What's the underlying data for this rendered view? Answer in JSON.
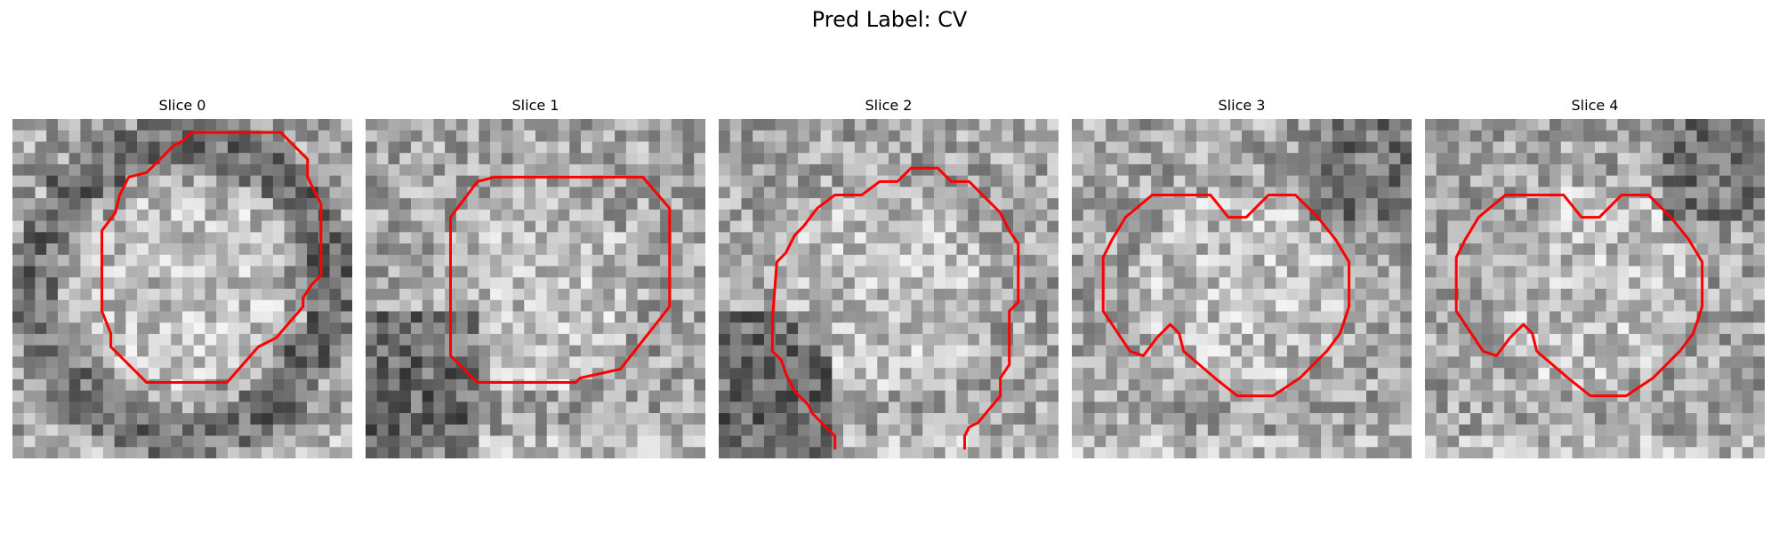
{
  "figure": {
    "title": "Pred Label: CV"
  },
  "panels": [
    {
      "title": "Slice 0",
      "seed": 11,
      "dark_band": "ring",
      "contour": [
        [
          46,
          3
        ],
        [
          60,
          3
        ],
        [
          66,
          9
        ],
        [
          66,
          13
        ],
        [
          69,
          19
        ],
        [
          69,
          35
        ],
        [
          67,
          37
        ],
        [
          65,
          40
        ],
        [
          65,
          42
        ],
        [
          59,
          49
        ],
        [
          55,
          51
        ],
        [
          48,
          59
        ],
        [
          30,
          59
        ],
        [
          22,
          51
        ],
        [
          22,
          48
        ],
        [
          20,
          43
        ],
        [
          20,
          25
        ],
        [
          23,
          21
        ],
        [
          24,
          17
        ],
        [
          26,
          13
        ],
        [
          30,
          12
        ],
        [
          36,
          6
        ],
        [
          38,
          5
        ],
        [
          40,
          3
        ]
      ]
    },
    {
      "title": "Slice 1",
      "seed": 23,
      "dark_band": "lower-left",
      "contour": [
        [
          29,
          13
        ],
        [
          62,
          13
        ],
        [
          68,
          20
        ],
        [
          68,
          42
        ],
        [
          57,
          56
        ],
        [
          48,
          58
        ],
        [
          47,
          59
        ],
        [
          25,
          59
        ],
        [
          19,
          53
        ],
        [
          19,
          22
        ],
        [
          25,
          14
        ]
      ]
    },
    {
      "title": "Slice 2",
      "seed": 37,
      "dark_band": "lower-left",
      "contour": [
        [
          26,
          74
        ],
        [
          26,
          71
        ],
        [
          21,
          66
        ],
        [
          20,
          64
        ],
        [
          17,
          61
        ],
        [
          15,
          57
        ],
        [
          14,
          54
        ],
        [
          12,
          52
        ],
        [
          12,
          45
        ],
        [
          13,
          32
        ],
        [
          15,
          30
        ],
        [
          17,
          26
        ],
        [
          19,
          24
        ],
        [
          22,
          20
        ],
        [
          26,
          17
        ],
        [
          32,
          17
        ],
        [
          36,
          14
        ],
        [
          40,
          14
        ],
        [
          43,
          11
        ],
        [
          49,
          11
        ],
        [
          52,
          14
        ],
        [
          56,
          14
        ],
        [
          63,
          21
        ],
        [
          65,
          25
        ],
        [
          67,
          28
        ],
        [
          67,
          41
        ],
        [
          65,
          43
        ],
        [
          65,
          55
        ],
        [
          63,
          58
        ],
        [
          63,
          62
        ],
        [
          58,
          68
        ],
        [
          56,
          69
        ],
        [
          55,
          71
        ],
        [
          55,
          74
        ]
      ]
    },
    {
      "title": "Slice 3",
      "seed": 41,
      "dark_band": "upper-right",
      "contour": [
        [
          31,
          17
        ],
        [
          35,
          22
        ],
        [
          39,
          22
        ],
        [
          44,
          17
        ],
        [
          50,
          17
        ],
        [
          55,
          22
        ],
        [
          59,
          27
        ],
        [
          62,
          32
        ],
        [
          62,
          42
        ],
        [
          60,
          48
        ],
        [
          57,
          52
        ],
        [
          51,
          58
        ],
        [
          45,
          62
        ],
        [
          37,
          62
        ],
        [
          32,
          58
        ],
        [
          25,
          52
        ],
        [
          24,
          48
        ],
        [
          22,
          46
        ],
        [
          19,
          49
        ],
        [
          16,
          53
        ],
        [
          13,
          52
        ],
        [
          9,
          46
        ],
        [
          7,
          43
        ],
        [
          7,
          31
        ],
        [
          9,
          27
        ],
        [
          12,
          22
        ],
        [
          18,
          17
        ]
      ]
    },
    {
      "title": "Slice 4",
      "seed": 53,
      "dark_band": "upper-right",
      "contour": [
        [
          31,
          17
        ],
        [
          35,
          22
        ],
        [
          39,
          22
        ],
        [
          44,
          17
        ],
        [
          50,
          17
        ],
        [
          55,
          22
        ],
        [
          59,
          27
        ],
        [
          62,
          32
        ],
        [
          62,
          42
        ],
        [
          60,
          48
        ],
        [
          57,
          52
        ],
        [
          51,
          58
        ],
        [
          45,
          62
        ],
        [
          37,
          62
        ],
        [
          32,
          58
        ],
        [
          25,
          52
        ],
        [
          24,
          48
        ],
        [
          22,
          46
        ],
        [
          19,
          49
        ],
        [
          16,
          53
        ],
        [
          13,
          52
        ],
        [
          9,
          46
        ],
        [
          7,
          43
        ],
        [
          7,
          31
        ],
        [
          9,
          27
        ],
        [
          12,
          22
        ],
        [
          18,
          17
        ]
      ]
    }
  ],
  "style": {
    "contour_color": "#ff0000"
  }
}
